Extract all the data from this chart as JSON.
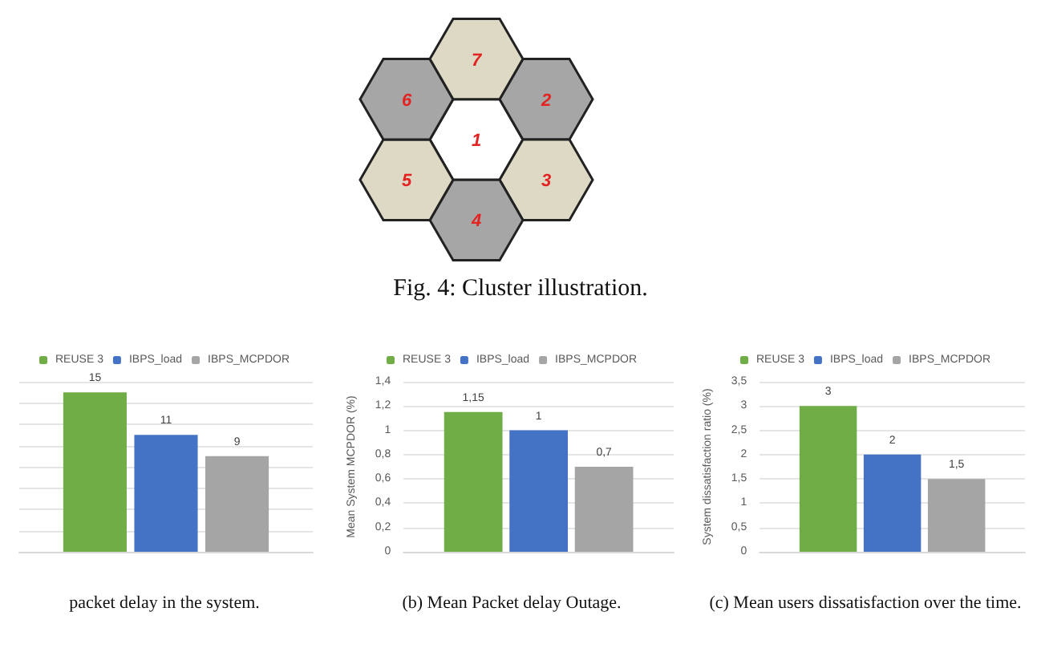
{
  "chart_data": [
    {
      "type": "other",
      "title": "Fig. 4: Cluster illustration.",
      "annotations": [
        "1",
        "2",
        "3",
        "4",
        "5",
        "6",
        "7"
      ]
    },
    {
      "type": "bar",
      "categories": [
        null
      ],
      "series": [
        {
          "name": "REUSE 3",
          "color": "#70ad47",
          "values": [
            15
          ],
          "value_labels": [
            "15"
          ]
        },
        {
          "name": "IBPS_load",
          "color": "#4472c4",
          "values": [
            11
          ],
          "value_labels": [
            "11"
          ]
        },
        {
          "name": "IBPS_MCPDOR",
          "color": "#a5a5a5",
          "values": [
            9
          ],
          "value_labels": [
            "9"
          ]
        }
      ],
      "grid": true,
      "legend": "top",
      "tick_labels": false,
      "annotations": [
        "packet delay in the system."
      ]
    },
    {
      "type": "bar",
      "categories": [
        null
      ],
      "ylabel": "Mean System MCPDOR (%)",
      "series": [
        {
          "name": "REUSE 3",
          "color": "#70ad47",
          "values": [
            1.15
          ],
          "value_labels": [
            "1,15"
          ]
        },
        {
          "name": "IBPS_load",
          "color": "#4472c4",
          "values": [
            1
          ],
          "value_labels": [
            "1"
          ]
        },
        {
          "name": "IBPS_MCPDOR",
          "color": "#a5a5a5",
          "values": [
            0.7
          ],
          "value_labels": [
            "0,7"
          ]
        }
      ],
      "ylim": [
        0,
        1.4
      ],
      "yticks": [
        0,
        {
          "value": 0.2,
          "label": "0,2"
        },
        {
          "value": 0.4,
          "label": "0,4"
        },
        {
          "value": 0.6,
          "label": "0,6"
        },
        {
          "value": 0.8,
          "label": "0,8"
        },
        1,
        {
          "value": 1.2,
          "label": "1,2"
        },
        {
          "value": 1.4,
          "label": "1,4"
        }
      ],
      "grid": "y",
      "legend": "top",
      "tick_labels": "y",
      "annotations": [
        "(b) Mean Packet delay Outage."
      ]
    },
    {
      "type": "bar",
      "categories": [
        null
      ],
      "ylabel": "System dissatisfaction ratio (%)",
      "series": [
        {
          "name": "REUSE 3",
          "color": "#70ad47",
          "values": [
            3
          ],
          "value_labels": [
            "3"
          ]
        },
        {
          "name": "IBPS_load",
          "color": "#4472c4",
          "values": [
            2
          ],
          "value_labels": [
            "2"
          ]
        },
        {
          "name": "IBPS_MCPDOR",
          "color": "#a5a5a5",
          "values": [
            1.5
          ],
          "value_labels": [
            "1,5"
          ]
        }
      ],
      "ylim": [
        0,
        3.5
      ],
      "yticks": [
        0,
        {
          "value": 0.5,
          "label": "0,5"
        },
        1,
        {
          "value": 1.5,
          "label": "1,5"
        },
        2,
        {
          "value": 2.5,
          "label": "2,5"
        },
        3,
        {
          "value": 3.5,
          "label": "3,5"
        }
      ],
      "grid": "y",
      "legend": "top",
      "tick_labels": "y",
      "annotations": [
        "(c) Mean users dissatisfaction over the time."
      ]
    }
  ]
}
